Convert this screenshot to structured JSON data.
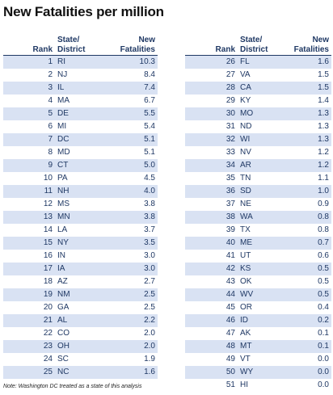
{
  "chart_data": {
    "type": "table",
    "title": "New Fatalities per million",
    "columns": [
      "Rank",
      "State/ District",
      "New Fatalities"
    ],
    "left_rows": [
      {
        "rank": "1",
        "state": "RI",
        "value": "10.3"
      },
      {
        "rank": "2",
        "state": "NJ",
        "value": "8.4"
      },
      {
        "rank": "3",
        "state": "IL",
        "value": "7.4"
      },
      {
        "rank": "4",
        "state": "MA",
        "value": "6.7"
      },
      {
        "rank": "5",
        "state": "DE",
        "value": "5.5"
      },
      {
        "rank": "6",
        "state": "MI",
        "value": "5.4"
      },
      {
        "rank": "7",
        "state": "DC",
        "value": "5.1"
      },
      {
        "rank": "8",
        "state": "MD",
        "value": "5.1"
      },
      {
        "rank": "9",
        "state": "CT",
        "value": "5.0"
      },
      {
        "rank": "10",
        "state": "PA",
        "value": "4.5"
      },
      {
        "rank": "11",
        "state": "NH",
        "value": "4.0"
      },
      {
        "rank": "12",
        "state": "MS",
        "value": "3.8"
      },
      {
        "rank": "13",
        "state": "MN",
        "value": "3.8"
      },
      {
        "rank": "14",
        "state": "LA",
        "value": "3.7"
      },
      {
        "rank": "15",
        "state": "NY",
        "value": "3.5"
      },
      {
        "rank": "16",
        "state": "IN",
        "value": "3.0"
      },
      {
        "rank": "17",
        "state": "IA",
        "value": "3.0"
      },
      {
        "rank": "18",
        "state": "AZ",
        "value": "2.7"
      },
      {
        "rank": "19",
        "state": "NM",
        "value": "2.5"
      },
      {
        "rank": "20",
        "state": "GA",
        "value": "2.5"
      },
      {
        "rank": "21",
        "state": "AL",
        "value": "2.2"
      },
      {
        "rank": "22",
        "state": "CO",
        "value": "2.0"
      },
      {
        "rank": "23",
        "state": "OH",
        "value": "2.0"
      },
      {
        "rank": "24",
        "state": "SC",
        "value": "1.9"
      },
      {
        "rank": "25",
        "state": "NC",
        "value": "1.6"
      }
    ],
    "right_rows": [
      {
        "rank": "26",
        "state": "FL",
        "value": "1.6"
      },
      {
        "rank": "27",
        "state": "VA",
        "value": "1.5"
      },
      {
        "rank": "28",
        "state": "CA",
        "value": "1.5"
      },
      {
        "rank": "29",
        "state": "KY",
        "value": "1.4"
      },
      {
        "rank": "30",
        "state": "MO",
        "value": "1.3"
      },
      {
        "rank": "31",
        "state": "ND",
        "value": "1.3"
      },
      {
        "rank": "32",
        "state": "WI",
        "value": "1.3"
      },
      {
        "rank": "33",
        "state": "NV",
        "value": "1.2"
      },
      {
        "rank": "34",
        "state": "AR",
        "value": "1.2"
      },
      {
        "rank": "35",
        "state": "TN",
        "value": "1.1"
      },
      {
        "rank": "36",
        "state": "SD",
        "value": "1.0"
      },
      {
        "rank": "37",
        "state": "NE",
        "value": "0.9"
      },
      {
        "rank": "38",
        "state": "WA",
        "value": "0.8"
      },
      {
        "rank": "39",
        "state": "TX",
        "value": "0.8"
      },
      {
        "rank": "40",
        "state": "ME",
        "value": "0.7"
      },
      {
        "rank": "41",
        "state": "UT",
        "value": "0.6"
      },
      {
        "rank": "42",
        "state": "KS",
        "value": "0.5"
      },
      {
        "rank": "43",
        "state": "OK",
        "value": "0.5"
      },
      {
        "rank": "44",
        "state": "WV",
        "value": "0.5"
      },
      {
        "rank": "45",
        "state": "OR",
        "value": "0.4"
      },
      {
        "rank": "46",
        "state": "ID",
        "value": "0.2"
      },
      {
        "rank": "47",
        "state": "AK",
        "value": "0.1"
      },
      {
        "rank": "48",
        "state": "MT",
        "value": "0.1"
      },
      {
        "rank": "49",
        "state": "VT",
        "value": "0.0"
      },
      {
        "rank": "50",
        "state": "WY",
        "value": "0.0"
      },
      {
        "rank": "51",
        "state": "HI",
        "value": "0.0"
      }
    ],
    "footnote": "Note: Washington DC treated as a state of this analysis"
  },
  "header": {
    "rank": "Rank",
    "state_line1": "State/",
    "state_line2": "District",
    "fat_line1": "New",
    "fat_line2": "Fatalities"
  },
  "colors": {
    "band": "#d9e2f3",
    "text": "#1f3864",
    "header_rule": "#1f3864"
  }
}
